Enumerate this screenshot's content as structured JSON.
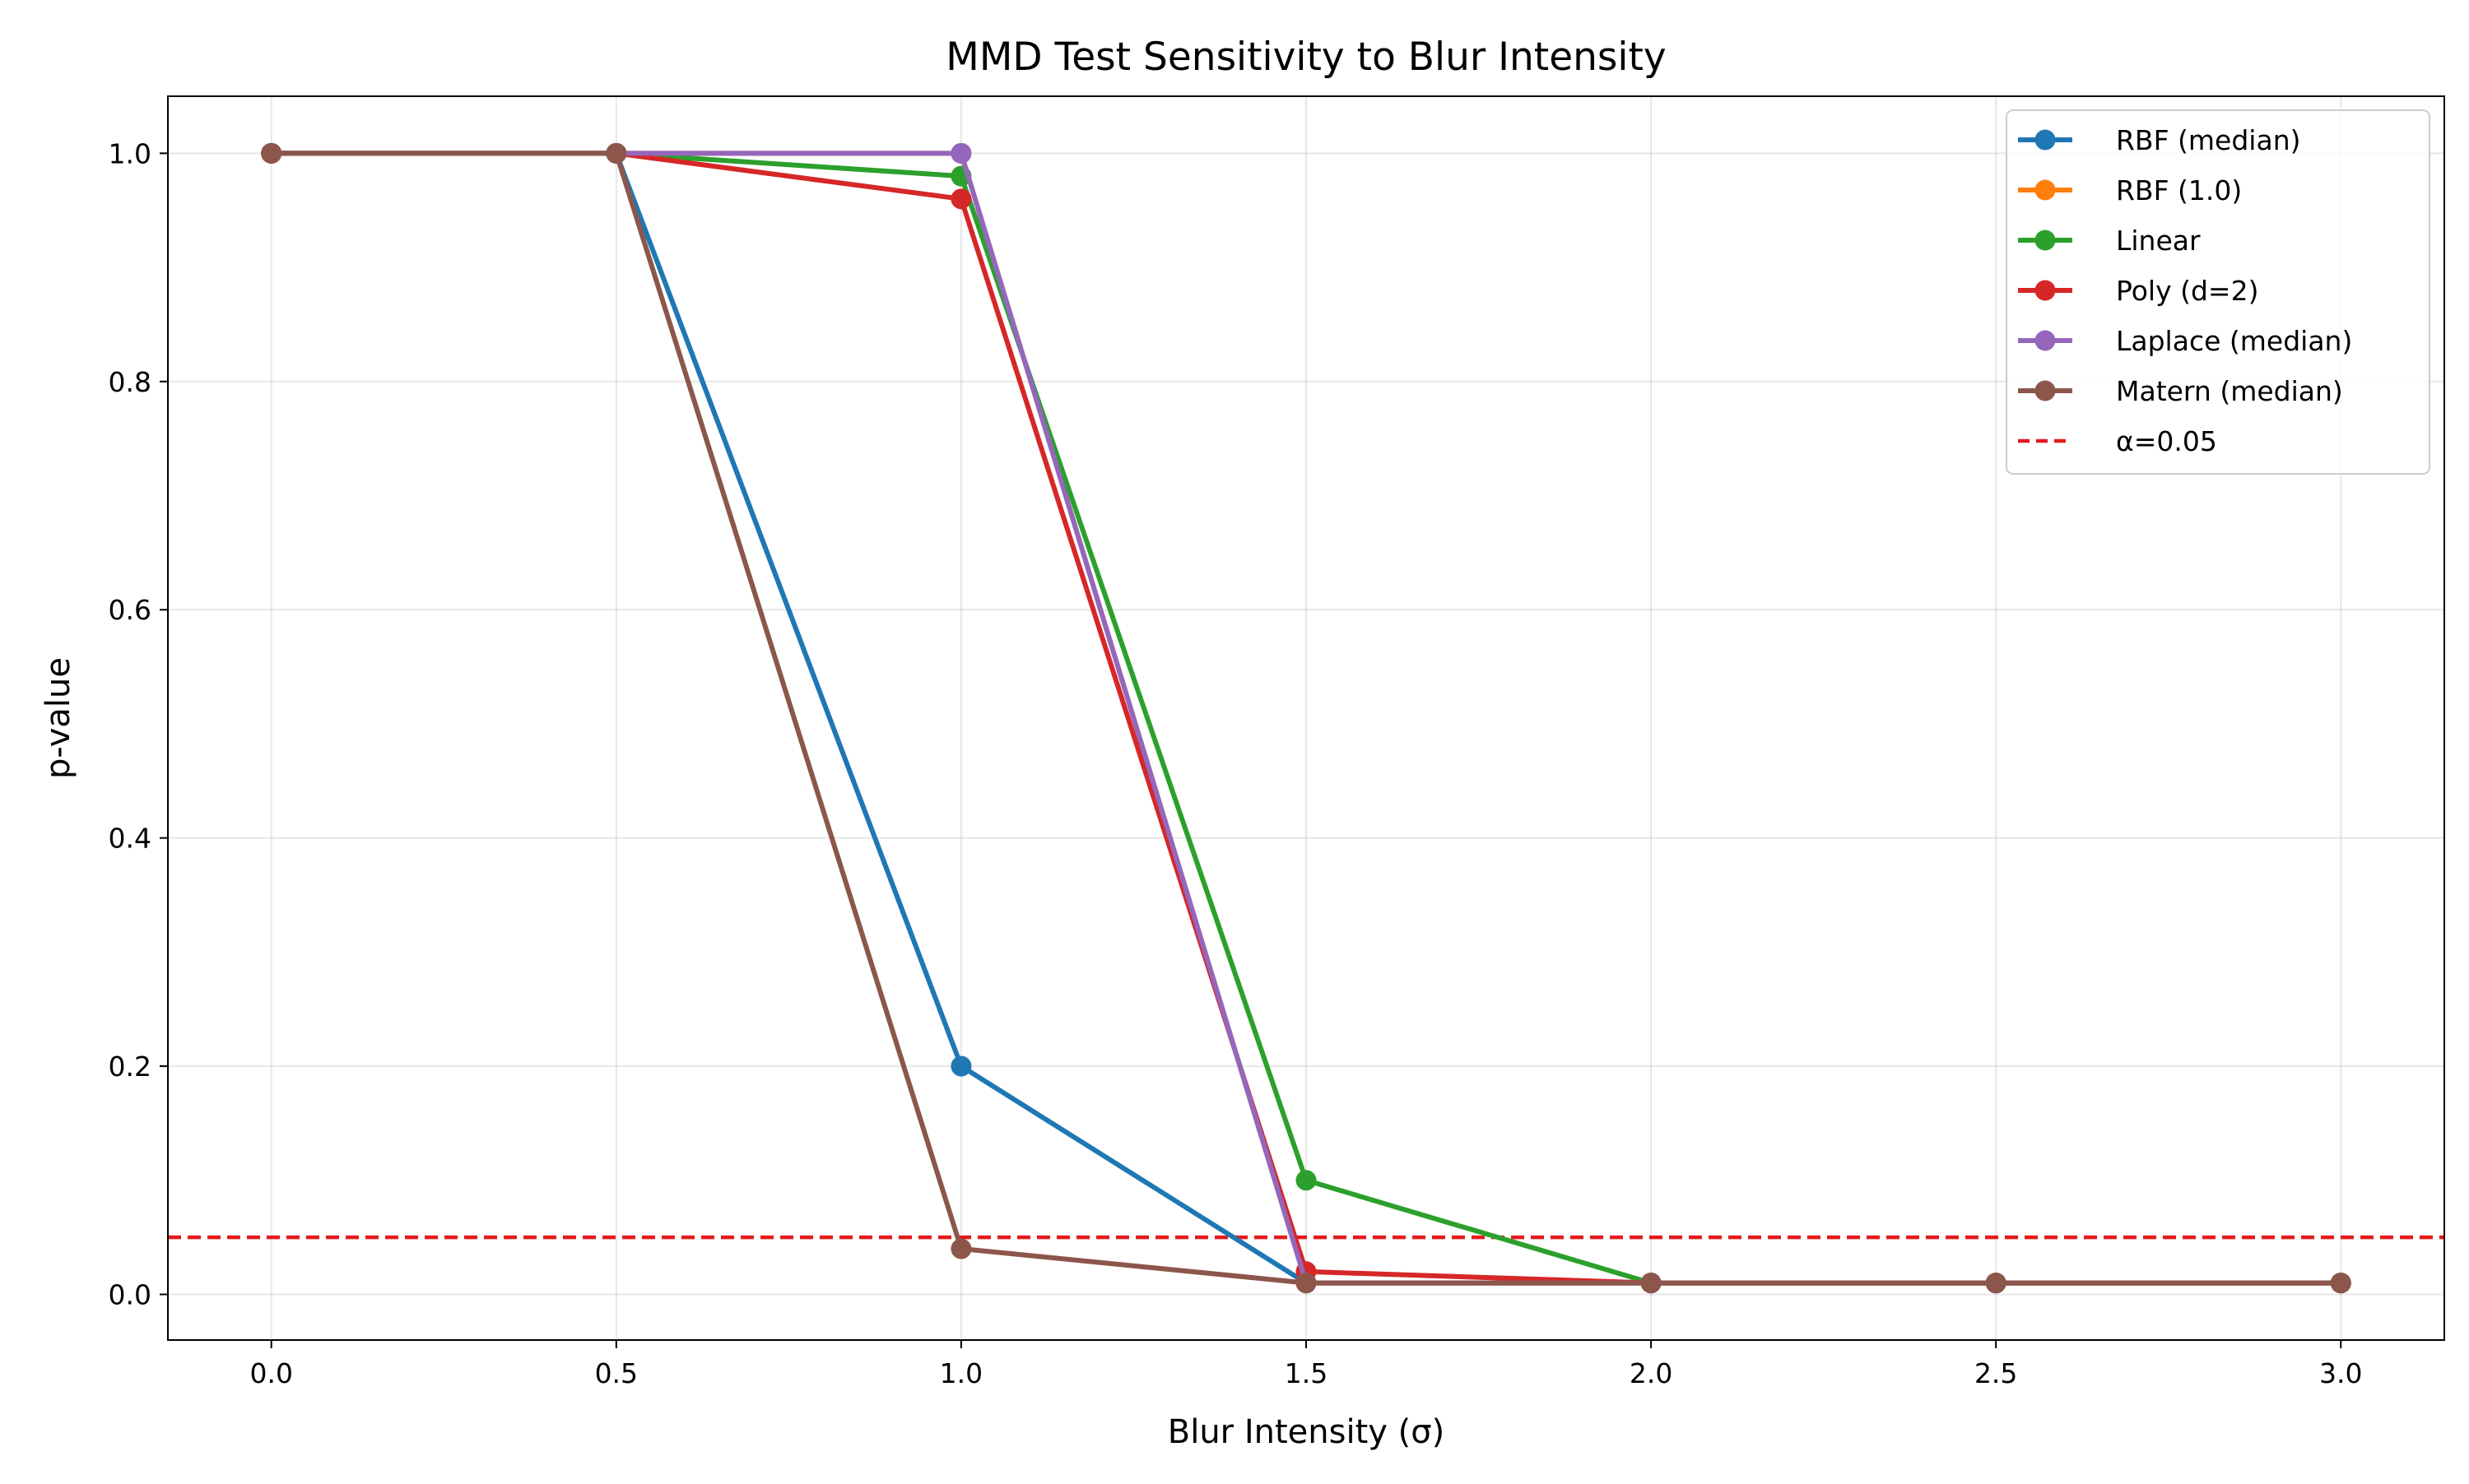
{
  "chart_data": {
    "type": "line",
    "title": "MMD Test Sensitivity to Blur Intensity",
    "xlabel": "Blur Intensity (σ)",
    "ylabel": "p-value",
    "xlim": [
      -0.15,
      3.15
    ],
    "ylim": [
      -0.04,
      1.05
    ],
    "x_ticks": [
      "0.0",
      "0.5",
      "1.0",
      "1.5",
      "2.0",
      "2.5",
      "3.0"
    ],
    "y_ticks": [
      "0.0",
      "0.2",
      "0.4",
      "0.6",
      "0.8",
      "1.0"
    ],
    "grid": true,
    "legend_position": "top-right",
    "x": [
      0.0,
      0.5,
      1.0,
      1.5,
      2.0,
      2.5,
      3.0
    ],
    "series": [
      {
        "name": "RBF (median)",
        "color": "#1f77b4",
        "values": [
          1.0,
          1.0,
          0.2,
          0.01,
          0.01,
          0.01,
          0.01
        ]
      },
      {
        "name": "RBF (1.0)",
        "color": "#ff7f0e",
        "values": [
          1.0,
          1.0,
          1.0,
          0.01,
          0.01,
          0.01,
          0.01
        ]
      },
      {
        "name": "Linear",
        "color": "#2ca02c",
        "values": [
          1.0,
          1.0,
          0.98,
          0.1,
          0.01,
          0.01,
          0.01
        ]
      },
      {
        "name": "Poly (d=2)",
        "color": "#d62728",
        "values": [
          1.0,
          1.0,
          0.96,
          0.02,
          0.01,
          0.01,
          0.01
        ]
      },
      {
        "name": "Laplace (median)",
        "color": "#9467bd",
        "values": [
          1.0,
          1.0,
          1.0,
          0.01,
          0.01,
          0.01,
          0.01
        ]
      },
      {
        "name": "Matern (median)",
        "color": "#8c564b",
        "values": [
          1.0,
          1.0,
          0.04,
          0.01,
          0.01,
          0.01,
          0.01
        ]
      }
    ],
    "reference_line": {
      "name": "α=0.05",
      "value": 0.05,
      "color": "#e31a1c",
      "style": "dashed"
    }
  }
}
